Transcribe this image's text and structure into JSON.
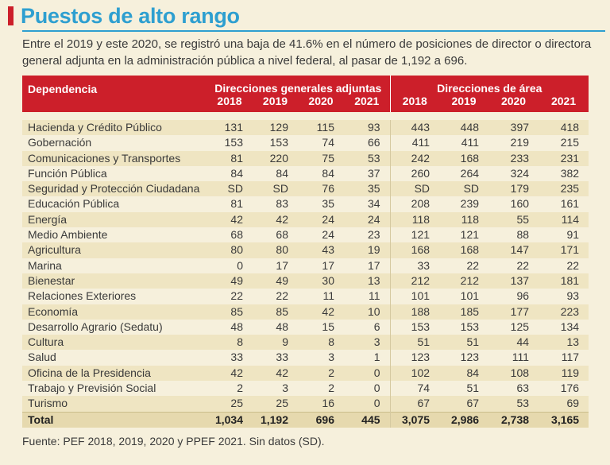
{
  "title": "Puestos de alto rango",
  "intro": "Entre el 2019 y este 2020, se registró una baja de 41.6% en el número de posiciones de director o directora general adjunta en la administración pública a nivel federal, al pasar de 1,192 a 696.",
  "table": {
    "col_dependencia": "Dependencia",
    "group_dga": "Direcciones generales adjuntas",
    "group_da": "Direcciones de área",
    "years": [
      "2018",
      "2019",
      "2020",
      "2021",
      "2018",
      "2019",
      "2020",
      "2021"
    ],
    "rows": [
      [
        "Hacienda y Crédito Público",
        "131",
        "129",
        "115",
        "93",
        "443",
        "448",
        "397",
        "418"
      ],
      [
        "Gobernación",
        "153",
        "153",
        "74",
        "66",
        "411",
        "411",
        "219",
        "215"
      ],
      [
        "Comunicaciones y Transportes",
        "81",
        "220",
        "75",
        "53",
        "242",
        "168",
        "233",
        "231"
      ],
      [
        "Función Pública",
        "84",
        "84",
        "84",
        "37",
        "260",
        "264",
        "324",
        "382"
      ],
      [
        "Seguridad y Protección Ciudadana",
        "SD",
        "SD",
        "76",
        "35",
        "SD",
        "SD",
        "179",
        "235"
      ],
      [
        "Educación Pública",
        "81",
        "83",
        "35",
        "34",
        "208",
        "239",
        "160",
        "161"
      ],
      [
        "Energía",
        "42",
        "42",
        "24",
        "24",
        "118",
        "118",
        "55",
        "114"
      ],
      [
        "Medio Ambiente",
        "68",
        "68",
        "24",
        "23",
        "121",
        "121",
        "88",
        "91"
      ],
      [
        "Agricultura",
        "80",
        "80",
        "43",
        "19",
        "168",
        "168",
        "147",
        "171"
      ],
      [
        "Marina",
        "0",
        "17",
        "17",
        "17",
        "33",
        "22",
        "22",
        "22"
      ],
      [
        "Bienestar",
        "49",
        "49",
        "30",
        "13",
        "212",
        "212",
        "137",
        "181"
      ],
      [
        "Relaciones Exteriores",
        "22",
        "22",
        "11",
        "11",
        "101",
        "101",
        "96",
        "93"
      ],
      [
        "Economía",
        "85",
        "85",
        "42",
        "10",
        "188",
        "185",
        "177",
        "223"
      ],
      [
        "Desarrollo Agrario (Sedatu)",
        "48",
        "48",
        "15",
        "6",
        "153",
        "153",
        "125",
        "134"
      ],
      [
        "Cultura",
        "8",
        "9",
        "8",
        "3",
        "51",
        "51",
        "44",
        "13"
      ],
      [
        "Salud",
        "33",
        "33",
        "3",
        "1",
        "123",
        "123",
        "111",
        "117"
      ],
      [
        "Oficina de la Presidencia",
        "42",
        "42",
        "2",
        "0",
        "102",
        "84",
        "108",
        "119"
      ],
      [
        "Trabajo y Previsión Social",
        "2",
        "3",
        "2",
        "0",
        "74",
        "51",
        "63",
        "176"
      ],
      [
        "Turismo",
        "25",
        "25",
        "16",
        "0",
        "67",
        "67",
        "53",
        "69"
      ]
    ],
    "total": [
      "Total",
      "1,034",
      "1,192",
      "696",
      "445",
      "3,075",
      "2,986",
      "2,738",
      "3,165"
    ]
  },
  "footer": "Fuente: PEF 2018, 2019, 2020 y PPEF 2021. Sin datos (SD)."
}
